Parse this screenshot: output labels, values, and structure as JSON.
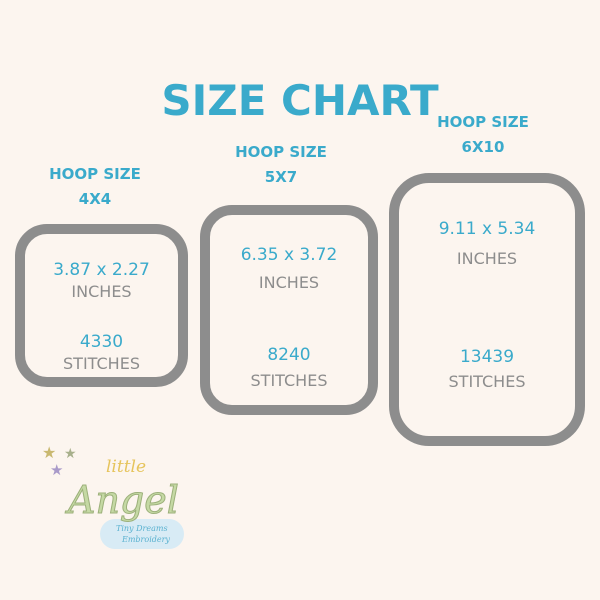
{
  "title": "SIZE CHART",
  "colors": {
    "accent": "#3aaacb",
    "frame": "#8d8d8d",
    "background": "#fcf5ef"
  },
  "hoops": [
    {
      "label": "HOOP SIZE",
      "size": "4X4",
      "dimensions": "3.87 x 2.27",
      "dimensions_unit": "INCHES",
      "stitches": "4330",
      "stitches_unit": "STITCHES"
    },
    {
      "label": "HOOP SIZE",
      "size": "5X7",
      "dimensions": "6.35 x 3.72",
      "dimensions_unit": "INCHES",
      "stitches": "8240",
      "stitches_unit": "STITCHES"
    },
    {
      "label": "HOOP SIZE",
      "size": "6X10",
      "dimensions": "9.11 x 5.34",
      "dimensions_unit": "INCHES",
      "stitches": "13439",
      "stitches_unit": "STITCHES"
    }
  ],
  "logo": {
    "line1": "little",
    "line2": "Angel",
    "tagline1": "Tiny Dreams",
    "tagline2": "Embroidery"
  }
}
